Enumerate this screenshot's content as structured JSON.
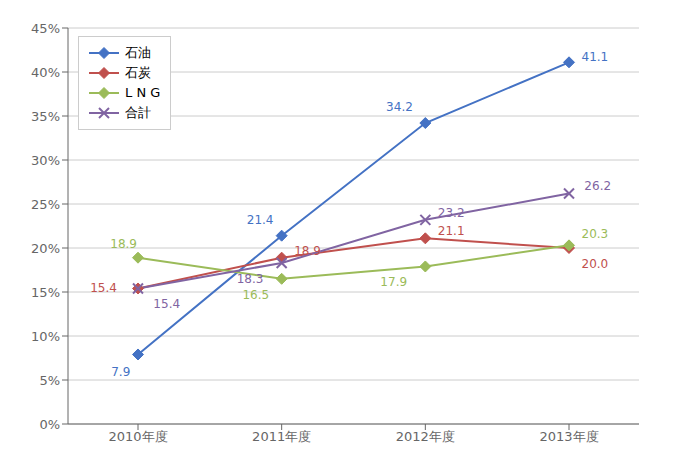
{
  "chart_data": {
    "type": "line",
    "categories": [
      "2010年度",
      "2011年度",
      "2012年度",
      "2013年度"
    ],
    "series": [
      {
        "name": "石油",
        "color": "#4472C4",
        "marker": "diamond",
        "line_style": "solid",
        "values": [
          7.9,
          21.4,
          34.2,
          41.1
        ],
        "value_labels": [
          "7.9",
          "21.4",
          "34.2",
          "41.1"
        ]
      },
      {
        "name": "石炭",
        "color": "#C0504D",
        "marker": "diamond",
        "line_style": "solid",
        "values": [
          15.4,
          18.9,
          21.1,
          20.0
        ],
        "value_labels": [
          "15.4",
          "18.9",
          "21.1",
          "20.0"
        ]
      },
      {
        "name": "L N G",
        "color": "#9BBB59",
        "marker": "diamond",
        "line_style": "solid",
        "values": [
          18.9,
          16.5,
          17.9,
          20.3
        ],
        "value_labels": [
          "18.9",
          "16.5",
          "17.9",
          "20.3"
        ]
      },
      {
        "name": "合計",
        "color": "#8064A2",
        "marker": "x",
        "line_style": "solid",
        "values": [
          15.4,
          18.3,
          23.2,
          26.2
        ],
        "value_labels": [
          "15.4",
          "18.3",
          "23.2",
          "26.2"
        ]
      }
    ],
    "ylim": [
      0,
      45
    ],
    "yticks": [
      {
        "value": 0,
        "label": "0%"
      },
      {
        "value": 5,
        "label": "5%"
      },
      {
        "value": 10,
        "label": "10%"
      },
      {
        "value": 15,
        "label": "15%"
      },
      {
        "value": 20,
        "label": "20%"
      },
      {
        "value": 25,
        "label": "25%"
      },
      {
        "value": 30,
        "label": "30%"
      },
      {
        "value": 35,
        "label": "35%"
      },
      {
        "value": 40,
        "label": "40%"
      },
      {
        "value": 45,
        "label": "45%"
      }
    ],
    "grid": true,
    "legend": "upper left",
    "data_labels": true
  }
}
